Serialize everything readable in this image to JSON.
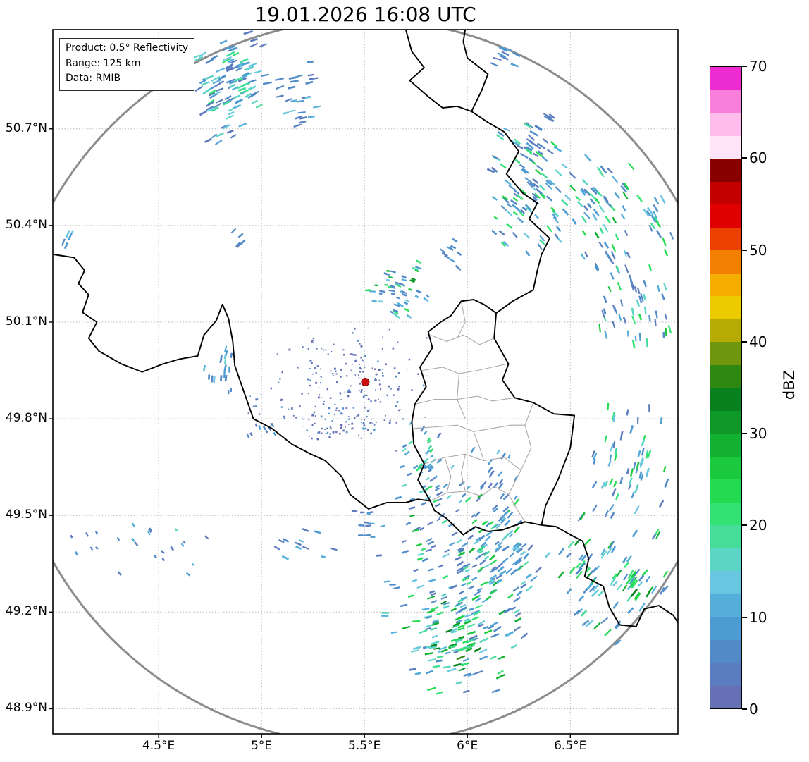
{
  "info_box": {
    "product": "Product: 0.5° Reflectivity",
    "range": "Range: 125 km",
    "source": "Data: RMIB"
  },
  "chart_data": {
    "type": "heatmap",
    "title": "19.01.2026 16:08 UTC",
    "xlabel": "",
    "ylabel": "",
    "x_tick_labels": [
      "4.5°E",
      "5°E",
      "5.5°E",
      "6°E",
      "6.5°E"
    ],
    "x_tick_lons": [
      4.5,
      5.0,
      5.5,
      6.0,
      6.5
    ],
    "y_tick_labels": [
      "50.7°N",
      "50.4°N",
      "50.1°N",
      "49.8°N",
      "49.5°N",
      "49.2°N",
      "48.9°N"
    ],
    "y_tick_lats": [
      50.7,
      50.4,
      50.1,
      49.8,
      49.5,
      49.2,
      48.9
    ],
    "lon_range": [
      3.986,
      7.023
    ],
    "lat_range": [
      48.822,
      51.008
    ],
    "grid": true,
    "colorbar": {
      "label": "dBZ",
      "ticks": [
        0,
        10,
        20,
        30,
        40,
        50,
        60,
        70
      ],
      "min": 0,
      "max": 70,
      "step_dbz": 2.5,
      "colors": [
        "#6670b4",
        "#5b7cbe",
        "#528ac8",
        "#4d9bd2",
        "#55afda",
        "#68c6e0",
        "#5bd5c6",
        "#46dd9b",
        "#33e272",
        "#24da50",
        "#1bc93f",
        "#13b131",
        "#0d9827",
        "#08801d",
        "#2f8812",
        "#6f960c",
        "#b5ab04",
        "#edcb00",
        "#f5ad00",
        "#f37f00",
        "#ec4000",
        "#e00000",
        "#c20000",
        "#8a0000",
        "#ffe3f6",
        "#ffbcec",
        "#f97fdd",
        "#ec2cd0"
      ]
    },
    "radar_site": {
      "lon": 5.504,
      "lat": 49.914,
      "range_km": 125
    },
    "echo_clusters": [
      {
        "lon": 4.85,
        "lat": 50.84,
        "dlon": 0.13,
        "dlat": 0.15,
        "n": 110,
        "dbz_min": 4,
        "dbz_max": 22,
        "kind": "streak"
      },
      {
        "lon": 5.18,
        "lat": 50.8,
        "dlon": 0.08,
        "dlat": 0.08,
        "n": 26,
        "dbz_min": 4,
        "dbz_max": 14,
        "kind": "streak"
      },
      {
        "lon": 6.17,
        "lat": 50.93,
        "dlon": 0.06,
        "dlat": 0.05,
        "n": 10,
        "dbz_min": 4,
        "dbz_max": 10,
        "kind": "streak"
      },
      {
        "lon": 6.28,
        "lat": 50.52,
        "dlon": 0.14,
        "dlat": 0.16,
        "n": 95,
        "dbz_min": 4,
        "dbz_max": 28,
        "kind": "streak"
      },
      {
        "lon": 6.63,
        "lat": 50.45,
        "dlon": 0.17,
        "dlat": 0.12,
        "n": 65,
        "dbz_min": 4,
        "dbz_max": 30,
        "kind": "streak"
      },
      {
        "lon": 6.8,
        "lat": 50.19,
        "dlon": 0.18,
        "dlat": 0.15,
        "n": 58,
        "dbz_min": 4,
        "dbz_max": 26,
        "kind": "streak"
      },
      {
        "lon": 5.67,
        "lat": 50.2,
        "dlon": 0.12,
        "dlat": 0.07,
        "n": 48,
        "dbz_min": 5,
        "dbz_max": 30,
        "kind": "streak"
      },
      {
        "lon": 5.73,
        "lat": 50.23,
        "dlon": 0.012,
        "dlat": 0.01,
        "n": 3,
        "dbz_min": 30,
        "dbz_max": 40,
        "kind": "streak",
        "exp": 1
      },
      {
        "lon": 5.92,
        "lat": 50.3,
        "dlon": 0.06,
        "dlat": 0.05,
        "n": 10,
        "dbz_min": 3,
        "dbz_max": 10,
        "kind": "streak"
      },
      {
        "lon": 5.42,
        "lat": 49.9,
        "dlon": 0.28,
        "dlat": 0.15,
        "n": 210,
        "dbz_min": 0,
        "dbz_max": 7,
        "kind": "dot"
      },
      {
        "lon": 5.38,
        "lat": 49.785,
        "dlon": 0.14,
        "dlat": 0.04,
        "n": 45,
        "dbz_min": 1,
        "dbz_max": 10,
        "kind": "dot"
      },
      {
        "lon": 4.98,
        "lat": 49.85,
        "dlon": 0.05,
        "dlat": 0.04,
        "n": 8,
        "dbz_min": 2,
        "dbz_max": 8,
        "kind": "dot"
      },
      {
        "lon": 4.8,
        "lat": 49.95,
        "dlon": 0.06,
        "dlat": 0.06,
        "n": 18,
        "dbz_min": 5,
        "dbz_max": 18,
        "kind": "streak"
      },
      {
        "lon": 5.05,
        "lat": 49.77,
        "dlon": 0.11,
        "dlat": 0.03,
        "n": 12,
        "dbz_min": 3,
        "dbz_max": 10,
        "kind": "dash"
      },
      {
        "lon": 5.8,
        "lat": 49.66,
        "dlon": 0.1,
        "dlat": 0.11,
        "n": 48,
        "dbz_min": 4,
        "dbz_max": 26,
        "kind": "streak"
      },
      {
        "lon": 6.12,
        "lat": 49.63,
        "dlon": 0.1,
        "dlat": 0.07,
        "n": 16,
        "dbz_min": 3,
        "dbz_max": 14,
        "kind": "streak"
      },
      {
        "lon": 5.98,
        "lat": 49.28,
        "dlon": 0.3,
        "dlat": 0.26,
        "n": 240,
        "dbz_min": 4,
        "dbz_max": 30,
        "kind": "streak"
      },
      {
        "lon": 5.95,
        "lat": 49.12,
        "dlon": 0.12,
        "dlat": 0.1,
        "n": 60,
        "dbz_min": 14,
        "dbz_max": 36,
        "kind": "streak",
        "exp": 1.2
      },
      {
        "lon": 6.15,
        "lat": 49.42,
        "dlon": 0.12,
        "dlat": 0.1,
        "n": 50,
        "dbz_min": 6,
        "dbz_max": 28,
        "kind": "streak"
      },
      {
        "lon": 6.7,
        "lat": 49.3,
        "dlon": 0.22,
        "dlat": 0.16,
        "n": 85,
        "dbz_min": 6,
        "dbz_max": 32,
        "kind": "streak"
      },
      {
        "lon": 6.8,
        "lat": 49.28,
        "dlon": 0.05,
        "dlat": 0.04,
        "n": 12,
        "dbz_min": 20,
        "dbz_max": 36,
        "kind": "streak",
        "exp": 1.2
      },
      {
        "lon": 6.78,
        "lat": 49.67,
        "dlon": 0.16,
        "dlat": 0.14,
        "n": 55,
        "dbz_min": 4,
        "dbz_max": 30,
        "kind": "streak"
      },
      {
        "lon": 4.42,
        "lat": 49.4,
        "dlon": 0.34,
        "dlat": 0.07,
        "n": 24,
        "dbz_min": 3,
        "dbz_max": 16,
        "kind": "dash"
      },
      {
        "lon": 5.2,
        "lat": 49.4,
        "dlon": 0.13,
        "dlat": 0.06,
        "n": 12,
        "dbz_min": 3,
        "dbz_max": 12,
        "kind": "streak"
      },
      {
        "lon": 5.52,
        "lat": 49.47,
        "dlon": 0.08,
        "dlat": 0.05,
        "n": 12,
        "dbz_min": 3,
        "dbz_max": 12,
        "kind": "streak"
      },
      {
        "lon": 4.06,
        "lat": 50.34,
        "dlon": 0.03,
        "dlat": 0.04,
        "n": 5,
        "dbz_min": 6,
        "dbz_max": 16,
        "kind": "streak"
      },
      {
        "lon": 4.88,
        "lat": 50.35,
        "dlon": 0.03,
        "dlat": 0.03,
        "n": 5,
        "dbz_min": 4,
        "dbz_max": 12,
        "kind": "streak"
      },
      {
        "lon": 6.35,
        "lat": 50.68,
        "dlon": 0.07,
        "dlat": 0.07,
        "n": 16,
        "dbz_min": 4,
        "dbz_max": 20,
        "kind": "streak"
      },
      {
        "lon": 6.9,
        "lat": 50.43,
        "dlon": 0.08,
        "dlat": 0.06,
        "n": 14,
        "dbz_min": 5,
        "dbz_max": 24,
        "kind": "streak"
      }
    ]
  },
  "map": {
    "colors": {
      "national": "#000000",
      "regional": "#a9a9a9",
      "grid": "#b5b5b5",
      "ring": "#8c8c8c",
      "radar_dot": "#cc1111",
      "frame": "#000000"
    },
    "national_borders": [
      [
        [
          5.7,
          51.01
        ],
        [
          5.73,
          50.94
        ],
        [
          5.79,
          50.89
        ],
        [
          5.72,
          50.85
        ],
        [
          5.81,
          50.8
        ],
        [
          5.88,
          50.765
        ],
        [
          5.95,
          50.77
        ],
        [
          6.02,
          50.754
        ]
      ],
      [
        [
          6.02,
          50.754
        ],
        [
          6.07,
          50.82
        ],
        [
          6.1,
          50.87
        ],
        [
          6.0,
          50.92
        ],
        [
          5.98,
          50.97
        ],
        [
          5.99,
          51.01
        ]
      ],
      [
        [
          6.02,
          50.754
        ],
        [
          6.1,
          50.72
        ],
        [
          6.18,
          50.69
        ],
        [
          6.25,
          50.63
        ],
        [
          6.19,
          50.56
        ],
        [
          6.27,
          50.5
        ],
        [
          6.34,
          50.47
        ],
        [
          6.3,
          50.42
        ],
        [
          6.4,
          50.36
        ],
        [
          6.36,
          50.31
        ],
        [
          6.34,
          50.26
        ],
        [
          6.32,
          50.2
        ],
        [
          6.22,
          50.165
        ],
        [
          6.14,
          50.128
        ]
      ],
      [
        [
          6.14,
          50.128
        ],
        [
          6.13,
          50.05
        ],
        [
          6.2,
          49.97
        ],
        [
          6.17,
          49.92
        ],
        [
          6.23,
          49.865
        ],
        [
          6.32,
          49.85
        ],
        [
          6.42,
          49.815
        ],
        [
          6.52,
          49.81
        ],
        [
          6.5,
          49.71
        ],
        [
          6.44,
          49.61
        ],
        [
          6.38,
          49.53
        ],
        [
          6.36,
          49.47
        ]
      ],
      [
        [
          6.36,
          49.47
        ],
        [
          6.28,
          49.48
        ],
        [
          6.17,
          49.455
        ],
        [
          6.1,
          49.45
        ],
        [
          6.04,
          49.465
        ],
        [
          5.98,
          49.44
        ],
        [
          5.9,
          49.49
        ],
        [
          5.84,
          49.515
        ],
        [
          5.82,
          49.545
        ]
      ],
      [
        [
          5.82,
          49.545
        ],
        [
          5.76,
          49.61
        ],
        [
          5.79,
          49.66
        ],
        [
          5.74,
          49.72
        ],
        [
          5.73,
          49.79
        ],
        [
          5.745,
          49.845
        ],
        [
          5.8,
          49.9
        ],
        [
          5.77,
          49.96
        ],
        [
          5.83,
          50.02
        ],
        [
          5.81,
          50.07
        ],
        [
          5.87,
          50.1
        ],
        [
          5.92,
          50.12
        ],
        [
          5.97,
          50.165
        ],
        [
          6.03,
          50.17
        ],
        [
          6.08,
          50.155
        ],
        [
          6.14,
          50.128
        ]
      ],
      [
        [
          6.36,
          49.47
        ],
        [
          6.43,
          49.465
        ],
        [
          6.5,
          49.44
        ],
        [
          6.56,
          49.42
        ],
        [
          6.59,
          49.365
        ],
        [
          6.57,
          49.31
        ],
        [
          6.66,
          49.28
        ],
        [
          6.69,
          49.215
        ],
        [
          6.74,
          49.16
        ],
        [
          6.82,
          49.155
        ],
        [
          6.86,
          49.21
        ],
        [
          6.93,
          49.22
        ],
        [
          7.0,
          49.19
        ],
        [
          7.03,
          49.16
        ]
      ],
      [
        [
          3.99,
          50.31
        ],
        [
          4.09,
          50.3
        ],
        [
          4.14,
          50.26
        ],
        [
          4.11,
          50.22
        ],
        [
          4.16,
          50.185
        ],
        [
          4.13,
          50.13
        ],
        [
          4.2,
          50.1
        ],
        [
          4.16,
          50.05
        ],
        [
          4.21,
          50.01
        ],
        [
          4.32,
          49.97
        ],
        [
          4.42,
          49.945
        ],
        [
          4.52,
          49.97
        ],
        [
          4.6,
          49.985
        ],
        [
          4.69,
          49.995
        ],
        [
          4.72,
          50.06
        ],
        [
          4.78,
          50.105
        ],
        [
          4.81,
          50.155
        ],
        [
          4.84,
          50.11
        ],
        [
          4.86,
          50.04
        ],
        [
          4.87,
          49.965
        ],
        [
          4.96,
          49.8
        ],
        [
          5.05,
          49.77
        ],
        [
          5.15,
          49.72
        ],
        [
          5.24,
          49.69
        ],
        [
          5.31,
          49.67
        ],
        [
          5.39,
          49.62
        ],
        [
          5.43,
          49.565
        ],
        [
          5.52,
          49.52
        ],
        [
          5.61,
          49.54
        ],
        [
          5.7,
          49.54
        ],
        [
          5.76,
          49.55
        ],
        [
          5.82,
          49.545
        ]
      ]
    ],
    "regional_borders": [
      [
        [
          5.82,
          50.06
        ],
        [
          5.9,
          50.04
        ],
        [
          5.98,
          50.06
        ],
        [
          6.06,
          50.03
        ],
        [
          6.13,
          50.05
        ]
      ],
      [
        [
          5.97,
          50.165
        ],
        [
          5.99,
          50.1
        ],
        [
          5.95,
          50.05
        ]
      ],
      [
        [
          5.78,
          49.95
        ],
        [
          5.88,
          49.96
        ],
        [
          5.96,
          49.94
        ],
        [
          6.05,
          49.95
        ],
        [
          6.19,
          49.97
        ]
      ],
      [
        [
          5.96,
          49.94
        ],
        [
          5.95,
          49.86
        ],
        [
          5.99,
          49.8
        ]
      ],
      [
        [
          5.745,
          49.845
        ],
        [
          5.84,
          49.86
        ],
        [
          5.95,
          49.86
        ],
        [
          6.05,
          49.87
        ],
        [
          6.12,
          49.855
        ],
        [
          6.23,
          49.865
        ]
      ],
      [
        [
          5.74,
          49.77
        ],
        [
          5.85,
          49.775
        ],
        [
          5.95,
          49.78
        ],
        [
          6.03,
          49.76
        ],
        [
          6.12,
          49.77
        ],
        [
          6.21,
          49.78
        ],
        [
          6.28,
          49.78
        ]
      ],
      [
        [
          6.32,
          49.85
        ],
        [
          6.28,
          49.78
        ],
        [
          6.31,
          49.71
        ],
        [
          6.26,
          49.64
        ]
      ],
      [
        [
          5.79,
          49.66
        ],
        [
          5.89,
          49.68
        ],
        [
          5.99,
          49.69
        ],
        [
          6.08,
          49.67
        ],
        [
          6.18,
          49.68
        ],
        [
          6.26,
          49.64
        ]
      ],
      [
        [
          5.82,
          49.545
        ],
        [
          5.9,
          49.57
        ],
        [
          5.99,
          49.575
        ],
        [
          6.07,
          49.56
        ],
        [
          6.13,
          49.59
        ],
        [
          6.2,
          49.565
        ],
        [
          6.26,
          49.64
        ]
      ],
      [
        [
          6.03,
          49.76
        ],
        [
          6.06,
          49.71
        ],
        [
          6.08,
          49.67
        ]
      ],
      [
        [
          5.9,
          49.57
        ],
        [
          5.92,
          49.62
        ],
        [
          5.89,
          49.68
        ]
      ],
      [
        [
          5.99,
          49.69
        ],
        [
          5.97,
          49.63
        ],
        [
          5.99,
          49.575
        ]
      ],
      [
        [
          6.2,
          49.565
        ],
        [
          6.24,
          49.52
        ],
        [
          6.28,
          49.48
        ]
      ]
    ]
  }
}
